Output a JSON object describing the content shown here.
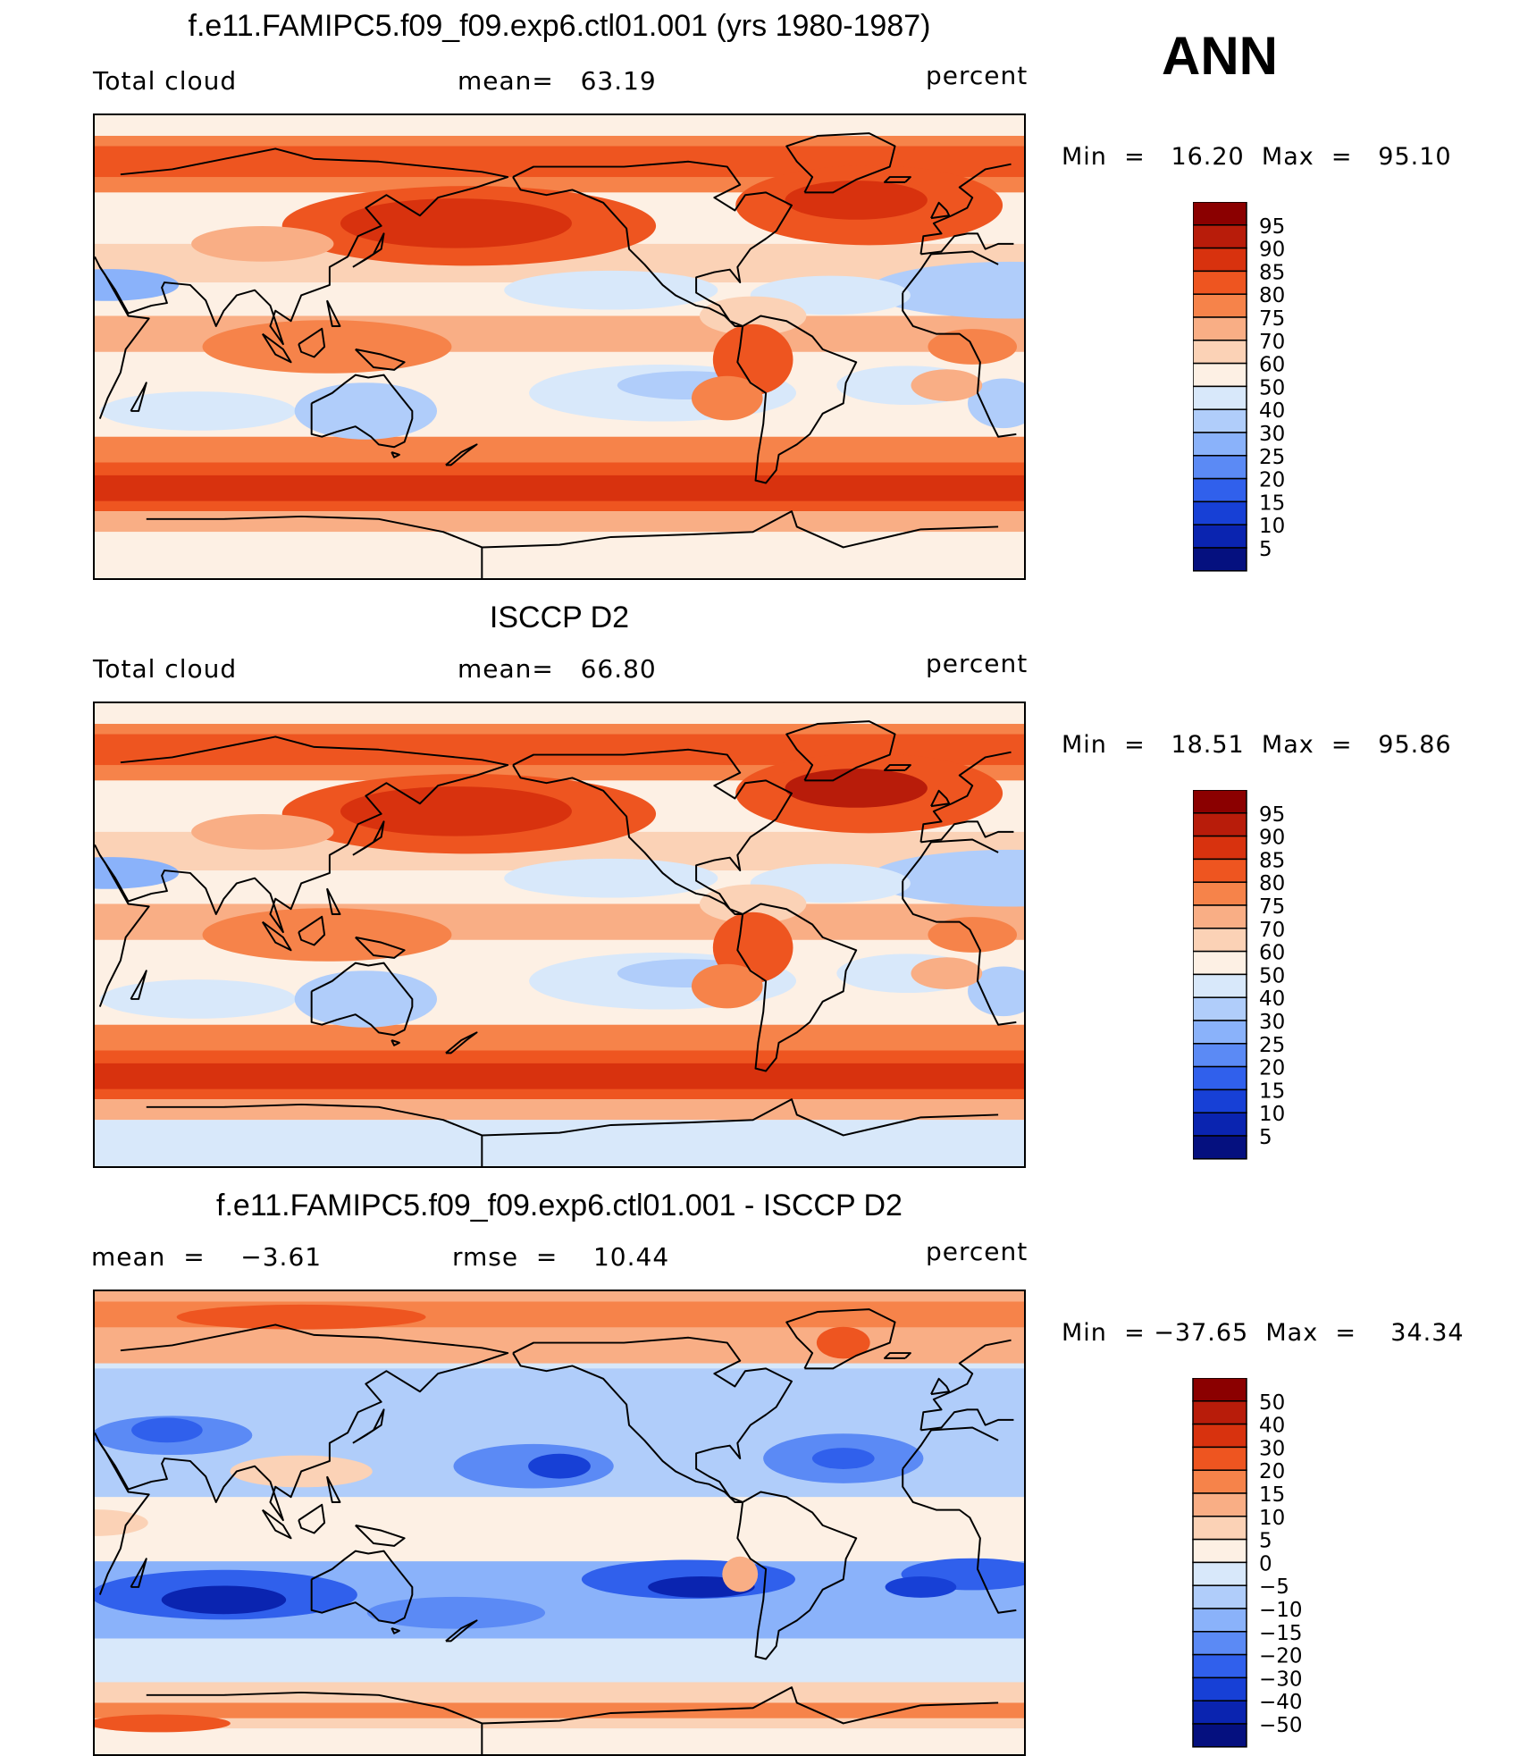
{
  "season": "ANN",
  "unit_label": "percent",
  "panels": [
    {
      "title": "f.e11.FAMIPC5.f09_f09.exp6.ctl01.001 (yrs 1980-1987)",
      "variable": "Total cloud",
      "stat_text": "mean=   63.19",
      "unit": "percent",
      "min_max": "Min  =   16.20  Max  =   95.10",
      "map_type": "model-climatology",
      "levels": [
        "95",
        "90",
        "85",
        "80",
        "75",
        "70",
        "60",
        "50",
        "40",
        "30",
        "25",
        "20",
        "15",
        "10",
        "5"
      ],
      "colors": [
        "#8b0000",
        "#b81c0a",
        "#d8320e",
        "#ee5520",
        "#f6834a",
        "#f9ae85",
        "#fbd2b6",
        "#fdf0e4",
        "#d8e8fa",
        "#b0cdfa",
        "#8ab2fa",
        "#5b8af5",
        "#3060ec",
        "#1740d6",
        "#0a24b0",
        "#05107f"
      ]
    },
    {
      "title": "ISCCP D2",
      "variable": "Total cloud",
      "stat_text": "mean=   66.80",
      "unit": "percent",
      "min_max": "Min  =   18.51  Max  =   95.86",
      "map_type": "observation-climatology",
      "levels": [
        "95",
        "90",
        "85",
        "80",
        "75",
        "70",
        "60",
        "50",
        "40",
        "30",
        "25",
        "20",
        "15",
        "10",
        "5"
      ],
      "colors": [
        "#8b0000",
        "#b81c0a",
        "#d8320e",
        "#ee5520",
        "#f6834a",
        "#f9ae85",
        "#fbd2b6",
        "#fdf0e4",
        "#d8e8fa",
        "#b0cdfa",
        "#8ab2fa",
        "#5b8af5",
        "#3060ec",
        "#1740d6",
        "#0a24b0",
        "#05107f"
      ]
    },
    {
      "title": "f.e11.FAMIPC5.f09_f09.exp6.ctl01.001 - ISCCP D2",
      "stat_left": "mean  =    −3.61",
      "stat_right": "rmse  =    10.44",
      "unit": "percent",
      "min_max": "Min  = −37.65  Max  =    34.34",
      "map_type": "difference",
      "levels": [
        "50",
        "40",
        "30",
        "20",
        "15",
        "10",
        "5",
        "0",
        "−5",
        "−10",
        "−15",
        "−20",
        "−30",
        "−40",
        "−50"
      ],
      "colors": [
        "#8b0000",
        "#b81c0a",
        "#d8320e",
        "#ee5520",
        "#f6834a",
        "#f9ae85",
        "#fbd2b6",
        "#fdf0e4",
        "#d8e8fa",
        "#b0cdfa",
        "#8ab2fa",
        "#5b8af5",
        "#3060ec",
        "#1740d6",
        "#0a24b0",
        "#05107f"
      ]
    }
  ]
}
